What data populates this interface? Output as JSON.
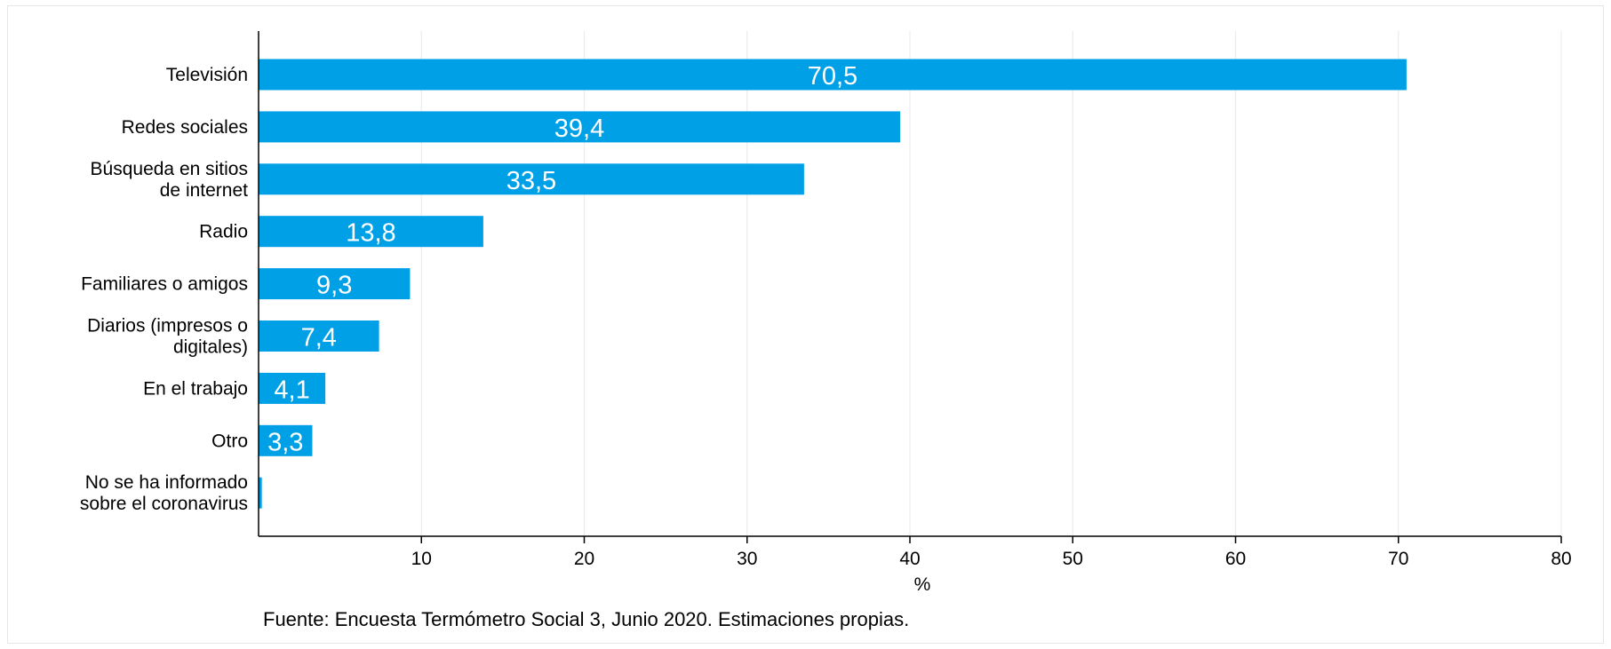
{
  "chart_data": {
    "type": "bar",
    "orientation": "horizontal",
    "categories": [
      [
        "Televisión"
      ],
      [
        "Redes sociales"
      ],
      [
        "Búsqueda en sitios",
        "de internet"
      ],
      [
        "Radio"
      ],
      [
        "Familiares o amigos"
      ],
      [
        "Diarios (impresos o",
        "digitales)"
      ],
      [
        "En el trabajo"
      ],
      [
        "Otro"
      ],
      [
        "No se ha informado",
        "sobre el coronavirus"
      ]
    ],
    "values": [
      70.5,
      39.4,
      33.5,
      13.8,
      9.3,
      7.4,
      4.1,
      3.3,
      0.2
    ],
    "value_labels": [
      "70,5",
      "39,4",
      "33,5",
      "13,8",
      "9,3",
      "7,4",
      "4,1",
      "3,3",
      ""
    ],
    "xlabel": "%",
    "xlim": [
      0,
      80
    ],
    "xticks": [
      10,
      20,
      30,
      40,
      50,
      60,
      70,
      80
    ],
    "grid": true,
    "bar_color": "#00a0e6",
    "grid_color": "#e8ecee",
    "note": "Fuente: Encuesta Termómetro Social 3, Junio 2020. Estimaciones propias."
  }
}
